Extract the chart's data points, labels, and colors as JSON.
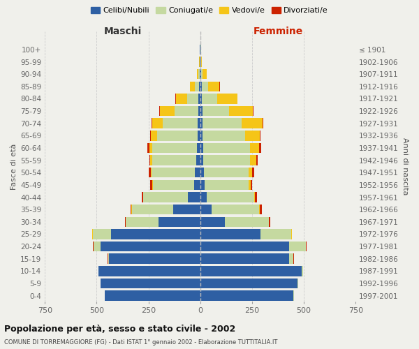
{
  "age_groups": [
    "0-4",
    "5-9",
    "10-14",
    "15-19",
    "20-24",
    "25-29",
    "30-34",
    "35-39",
    "40-44",
    "45-49",
    "50-54",
    "55-59",
    "60-64",
    "65-69",
    "70-74",
    "75-79",
    "80-84",
    "85-89",
    "90-94",
    "95-99",
    "100+"
  ],
  "birth_years": [
    "1997-2001",
    "1992-1996",
    "1987-1991",
    "1982-1986",
    "1977-1981",
    "1972-1976",
    "1967-1971",
    "1962-1966",
    "1957-1961",
    "1952-1956",
    "1947-1951",
    "1942-1946",
    "1937-1941",
    "1932-1936",
    "1927-1931",
    "1922-1926",
    "1917-1921",
    "1912-1916",
    "1907-1911",
    "1902-1906",
    "≤ 1901"
  ],
  "male_celibe": [
    460,
    480,
    490,
    440,
    480,
    430,
    200,
    130,
    60,
    30,
    25,
    18,
    16,
    14,
    12,
    10,
    8,
    5,
    3,
    2,
    2
  ],
  "male_coniugato": [
    1,
    2,
    3,
    5,
    35,
    90,
    160,
    200,
    215,
    200,
    210,
    215,
    215,
    195,
    170,
    115,
    55,
    20,
    5,
    2,
    1
  ],
  "male_vedovo": [
    0,
    0,
    0,
    0,
    0,
    1,
    1,
    2,
    2,
    3,
    5,
    8,
    15,
    30,
    50,
    70,
    55,
    25,
    8,
    2,
    0
  ],
  "male_divorziato": [
    0,
    0,
    0,
    1,
    2,
    2,
    3,
    5,
    5,
    8,
    8,
    5,
    8,
    4,
    3,
    2,
    1,
    0,
    0,
    0,
    0
  ],
  "female_celibe": [
    450,
    470,
    490,
    430,
    430,
    290,
    120,
    55,
    30,
    22,
    18,
    16,
    14,
    12,
    10,
    10,
    8,
    8,
    3,
    2,
    2
  ],
  "female_coniugato": [
    2,
    3,
    5,
    20,
    80,
    150,
    210,
    230,
    230,
    210,
    215,
    225,
    225,
    205,
    190,
    130,
    75,
    30,
    8,
    2,
    1
  ],
  "female_vedovo": [
    0,
    0,
    0,
    0,
    0,
    1,
    2,
    3,
    5,
    10,
    18,
    28,
    45,
    70,
    100,
    115,
    95,
    55,
    20,
    5,
    0
  ],
  "female_divorziato": [
    0,
    0,
    0,
    1,
    2,
    3,
    5,
    10,
    8,
    8,
    10,
    8,
    10,
    5,
    3,
    2,
    1,
    1,
    0,
    0,
    0
  ],
  "colors": {
    "celibe": "#2e5fa3",
    "coniugato": "#c5d9a0",
    "vedovo": "#f5c518",
    "divorziato": "#cc2200"
  },
  "xlim": 750,
  "title_main": "Popolazione per età, sesso e stato civile - 2002",
  "title_sub": "COMUNE DI TORREMAGGIORE (FG) - Dati ISTAT 1° gennaio 2002 - Elaborazione TUTTITALIA.IT",
  "legend_labels": [
    "Celibi/Nubili",
    "Coniugati/e",
    "Vedovi/e",
    "Divorziati/e"
  ],
  "xlabel_left": "Maschi",
  "xlabel_right": "Femmine",
  "ylabel_left": "Fasce di età",
  "ylabel_right": "Anni di nascita",
  "bg_color": "#f0f0eb",
  "grid_color": "#cccccc"
}
